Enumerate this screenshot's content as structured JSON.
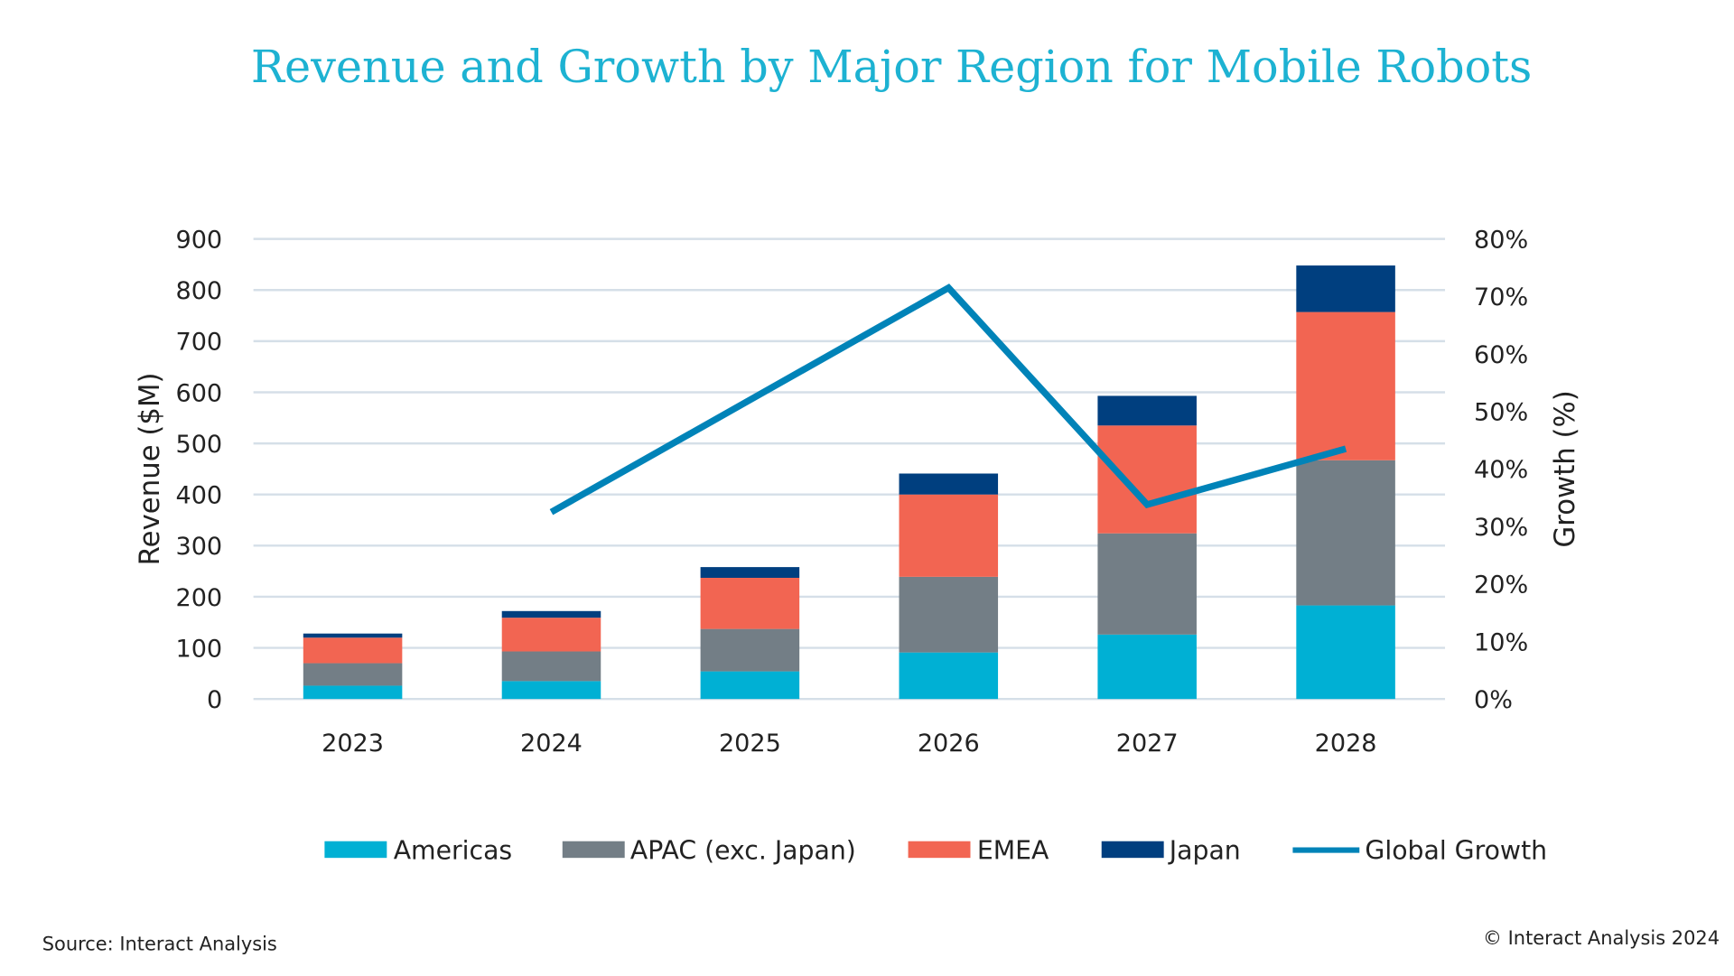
{
  "chart_data": {
    "type": "bar",
    "stacked": true,
    "title": "Revenue and Growth by Major Region for Mobile Robots",
    "categories": [
      "2023",
      "2024",
      "2025",
      "2026",
      "2027",
      "2028"
    ],
    "ylabel": "Revenue ($M)",
    "ylim": [
      0,
      900
    ],
    "yticks": [
      "0",
      "100",
      "200",
      "300",
      "400",
      "500",
      "600",
      "700",
      "800",
      "900"
    ],
    "y2label": "Growth (%)",
    "y2lim": [
      0,
      80
    ],
    "y2ticks": [
      "0%",
      "10%",
      "20%",
      "30%",
      "40%",
      "50%",
      "60%",
      "70%",
      "80%"
    ],
    "grid": true,
    "legend_position": "bottom",
    "series": [
      {
        "name": "Americas",
        "type": "bar",
        "color": "#00b0d4",
        "values": [
          26,
          35,
          54,
          91,
          126,
          183
        ]
      },
      {
        "name": "APAC (exc. Japan)",
        "type": "bar",
        "color": "#737e86",
        "values": [
          44,
          58,
          83,
          148,
          198,
          284
        ]
      },
      {
        "name": "EMEA",
        "type": "bar",
        "color": "#f26552",
        "values": [
          50,
          66,
          100,
          161,
          211,
          290
        ]
      },
      {
        "name": "Japan",
        "type": "bar",
        "color": "#003f7f",
        "values": [
          8,
          13,
          21,
          41,
          58,
          91
        ]
      },
      {
        "name": "Global Growth",
        "type": "line",
        "axis": "right",
        "color": "#0083b8",
        "values": [
          null,
          32.5,
          52,
          71.5,
          33.8,
          43.5
        ]
      }
    ]
  },
  "footer": {
    "source": "Source: Interact Analysis",
    "copyright": "© Interact Analysis 2024"
  }
}
